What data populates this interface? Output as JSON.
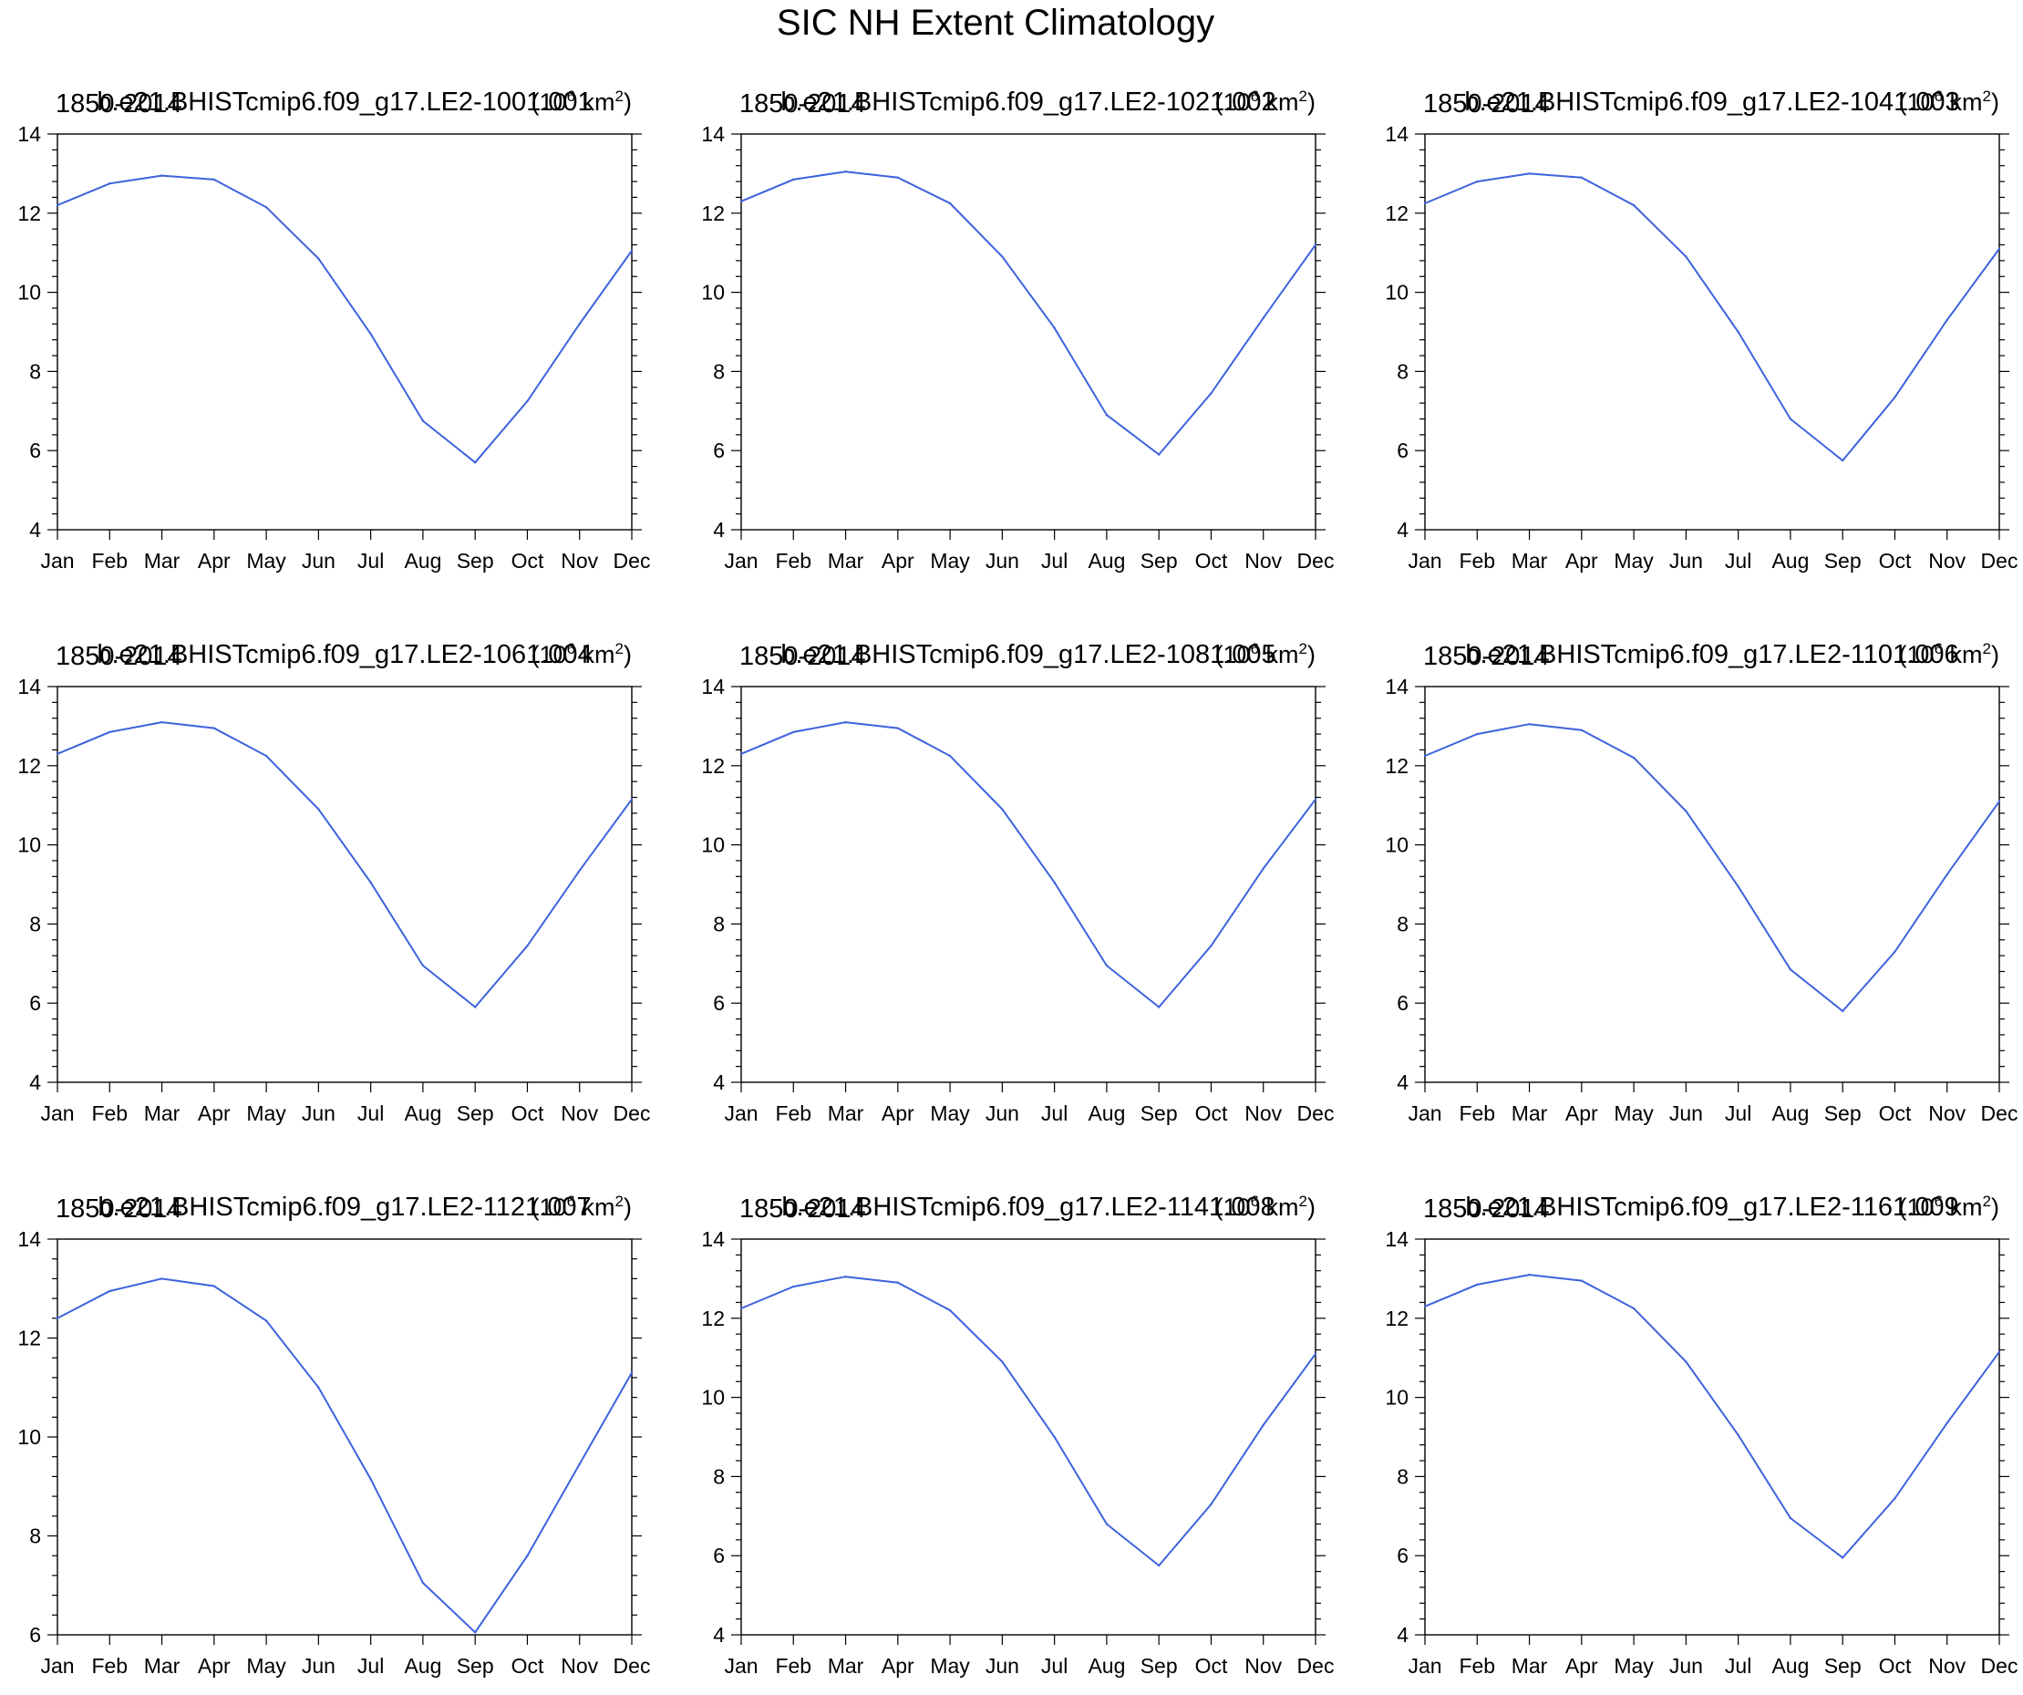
{
  "figure_title": "SIC NH Extent Climatology",
  "chart_data": [
    {
      "type": "line",
      "title_left": "1850-2014",
      "title_center": "b.e21.BHISTcmip6.f09_g17.LE2-1001.001",
      "title_right": "(10^6 km^2)",
      "categories": [
        "Jan",
        "Feb",
        "Mar",
        "Apr",
        "May",
        "Jun",
        "Jul",
        "Aug",
        "Sep",
        "Oct",
        "Nov",
        "Dec"
      ],
      "values": [
        12.2,
        12.75,
        12.95,
        12.85,
        12.15,
        10.85,
        8.95,
        6.75,
        5.7,
        7.25,
        9.2,
        11.05
      ],
      "ylim": [
        4,
        14
      ],
      "yticks": [
        "4",
        "6",
        "8",
        "10",
        "12",
        "14"
      ],
      "color": "#3d63dd"
    },
    {
      "type": "line",
      "title_left": "1850-2014",
      "title_center": "b.e21.BHISTcmip6.f09_g17.LE2-1021.002",
      "title_right": "(10^6 km^2)",
      "categories": [
        "Jan",
        "Feb",
        "Mar",
        "Apr",
        "May",
        "Jun",
        "Jul",
        "Aug",
        "Sep",
        "Oct",
        "Nov",
        "Dec"
      ],
      "values": [
        12.3,
        12.85,
        13.05,
        12.9,
        12.25,
        10.9,
        9.1,
        6.9,
        5.9,
        7.45,
        9.35,
        11.2
      ],
      "ylim": [
        4,
        14
      ],
      "yticks": [
        "4",
        "6",
        "8",
        "10",
        "12",
        "14"
      ],
      "color": "#3d63dd"
    },
    {
      "type": "line",
      "title_left": "1850-2014",
      "title_center": "b.e21.BHISTcmip6.f09_g17.LE2-1041.003",
      "title_right": "(10^6 km^2)",
      "categories": [
        "Jan",
        "Feb",
        "Mar",
        "Apr",
        "May",
        "Jun",
        "Jul",
        "Aug",
        "Sep",
        "Oct",
        "Nov",
        "Dec"
      ],
      "values": [
        12.25,
        12.8,
        13.0,
        12.9,
        12.2,
        10.9,
        9.0,
        6.8,
        5.75,
        7.35,
        9.3,
        11.1
      ],
      "ylim": [
        4,
        14
      ],
      "yticks": [
        "4",
        "6",
        "8",
        "10",
        "12",
        "14"
      ],
      "color": "#3d63dd"
    },
    {
      "type": "line",
      "title_left": "1850-2014",
      "title_center": "b.e21.BHISTcmip6.f09_g17.LE2-1061.004",
      "title_right": "(10^6 km^2)",
      "categories": [
        "Jan",
        "Feb",
        "Mar",
        "Apr",
        "May",
        "Jun",
        "Jul",
        "Aug",
        "Sep",
        "Oct",
        "Nov",
        "Dec"
      ],
      "values": [
        12.3,
        12.85,
        13.1,
        12.95,
        12.25,
        10.9,
        9.05,
        6.95,
        5.9,
        7.45,
        9.35,
        11.15
      ],
      "ylim": [
        4,
        14
      ],
      "yticks": [
        "4",
        "6",
        "8",
        "10",
        "12",
        "14"
      ],
      "color": "#3d63dd"
    },
    {
      "type": "line",
      "title_left": "1850-2014",
      "title_center": "b.e21.BHISTcmip6.f09_g17.LE2-1081.005",
      "title_right": "(10^6 km^2)",
      "categories": [
        "Jan",
        "Feb",
        "Mar",
        "Apr",
        "May",
        "Jun",
        "Jul",
        "Aug",
        "Sep",
        "Oct",
        "Nov",
        "Dec"
      ],
      "values": [
        12.3,
        12.85,
        13.1,
        12.95,
        12.25,
        10.9,
        9.05,
        6.95,
        5.9,
        7.45,
        9.4,
        11.15
      ],
      "ylim": [
        4,
        14
      ],
      "yticks": [
        "4",
        "6",
        "8",
        "10",
        "12",
        "14"
      ],
      "color": "#3d63dd"
    },
    {
      "type": "line",
      "title_left": "1850-2014",
      "title_center": "b.e21.BHISTcmip6.f09_g17.LE2-1101.006",
      "title_right": "(10^6 km^2)",
      "categories": [
        "Jan",
        "Feb",
        "Mar",
        "Apr",
        "May",
        "Jun",
        "Jul",
        "Aug",
        "Sep",
        "Oct",
        "Nov",
        "Dec"
      ],
      "values": [
        12.25,
        12.8,
        13.05,
        12.9,
        12.2,
        10.85,
        8.95,
        6.85,
        5.8,
        7.3,
        9.25,
        11.1
      ],
      "ylim": [
        4,
        14
      ],
      "yticks": [
        "4",
        "6",
        "8",
        "10",
        "12",
        "14"
      ],
      "color": "#3d63dd"
    },
    {
      "type": "line",
      "title_left": "1850-2014",
      "title_center": "b.e21.BHISTcmip6.f09_g17.LE2-1121.007",
      "title_right": "(10^6 km^2)",
      "categories": [
        "Jan",
        "Feb",
        "Mar",
        "Apr",
        "May",
        "Jun",
        "Jul",
        "Aug",
        "Sep",
        "Oct",
        "Nov",
        "Dec"
      ],
      "values": [
        12.4,
        12.95,
        13.2,
        13.05,
        12.35,
        11.0,
        9.15,
        7.05,
        6.05,
        7.6,
        9.45,
        11.3
      ],
      "ylim": [
        6,
        14
      ],
      "yticks": [
        "6",
        "8",
        "10",
        "12",
        "14"
      ],
      "color": "#3d63dd"
    },
    {
      "type": "line",
      "title_left": "1850-2014",
      "title_center": "b.e21.BHISTcmip6.f09_g17.LE2-1141.008",
      "title_right": "(10^6 km^2)",
      "categories": [
        "Jan",
        "Feb",
        "Mar",
        "Apr",
        "May",
        "Jun",
        "Jul",
        "Aug",
        "Sep",
        "Oct",
        "Nov",
        "Dec"
      ],
      "values": [
        12.25,
        12.8,
        13.05,
        12.9,
        12.2,
        10.9,
        9.0,
        6.8,
        5.75,
        7.3,
        9.3,
        11.1
      ],
      "ylim": [
        4,
        14
      ],
      "yticks": [
        "4",
        "6",
        "8",
        "10",
        "12",
        "14"
      ],
      "color": "#3d63dd"
    },
    {
      "type": "line",
      "title_left": "1850-2014",
      "title_center": "b.e21.BHISTcmip6.f09_g17.LE2-1161.009",
      "title_right": "(10^6 km^2)",
      "categories": [
        "Jan",
        "Feb",
        "Mar",
        "Apr",
        "May",
        "Jun",
        "Jul",
        "Aug",
        "Sep",
        "Oct",
        "Nov",
        "Dec"
      ],
      "values": [
        12.3,
        12.85,
        13.1,
        12.95,
        12.25,
        10.9,
        9.05,
        6.95,
        5.95,
        7.45,
        9.35,
        11.15
      ],
      "ylim": [
        4,
        14
      ],
      "yticks": [
        "4",
        "6",
        "8",
        "10",
        "12",
        "14"
      ],
      "color": "#3d63dd"
    }
  ]
}
